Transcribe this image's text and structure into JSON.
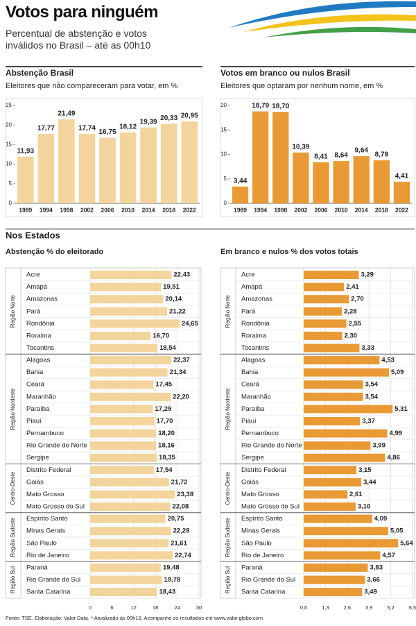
{
  "header": {
    "title": "Votos para ninguém",
    "subtitle": "Percentual de abstenção e votos inválidos no Brasil – até as 00h10"
  },
  "section_title": "Nos Estados",
  "source": "Fonte: TSE. Elaboração: Valor Data. * Atualizado às 00h10. Acompanhe os resultados em www.valor.globo.com",
  "chart_data": [
    {
      "type": "bar",
      "title": "Abstenção Brasil",
      "subtitle": "Eleitores que não compareceram para votar, em %",
      "categories": [
        "1989",
        "1994",
        "1998",
        "2002",
        "2006",
        "2010",
        "2014",
        "2018",
        "2022"
      ],
      "values": [
        11.93,
        17.77,
        21.49,
        17.74,
        16.75,
        18.12,
        19.39,
        20.33,
        20.95
      ],
      "value_labels": [
        "11,93",
        "17,77",
        "21,49",
        "17,74",
        "16,75",
        "18,12",
        "19,39",
        "20,33",
        "20,95"
      ],
      "color": "#f3d49c",
      "ylim": [
        0,
        25
      ],
      "yticks": [
        0,
        5,
        10,
        15,
        20,
        25
      ]
    },
    {
      "type": "bar",
      "title": "Votos em branco ou nulos Brasil",
      "subtitle": "Eleitores que optaram por nenhum nome, em %",
      "categories": [
        "1989",
        "1994",
        "1998",
        "2002",
        "2006",
        "2010",
        "2014",
        "2018",
        "2022"
      ],
      "values": [
        3.44,
        18.79,
        18.7,
        10.39,
        8.41,
        8.64,
        9.64,
        8.79,
        4.41
      ],
      "value_labels": [
        "3,44",
        "18,79",
        "18,70",
        "10,39",
        "8,41",
        "8,64",
        "9,64",
        "8,79",
        "4,41"
      ],
      "color": "#e99a35",
      "ylim": [
        0,
        20
      ],
      "yticks": [
        0,
        5,
        10,
        15,
        20
      ]
    },
    {
      "type": "hbar",
      "title": "Abstenção % do eleitorado",
      "color": "#f3d49c",
      "xlim": [
        0,
        30
      ],
      "xticks": [
        0,
        6,
        12,
        18,
        24,
        30
      ],
      "groups": [
        {
          "name": "Região Norte",
          "categories": [
            "Acre",
            "Amapá",
            "Amazonas",
            "Pará",
            "Rondônia",
            "Roraima",
            "Tocantins"
          ],
          "values": [
            22.43,
            19.51,
            20.14,
            21.22,
            24.65,
            16.7,
            18.54
          ],
          "value_labels": [
            "22,43",
            "19,51",
            "20,14",
            "21,22",
            "24,65",
            "16,70",
            "18,54"
          ]
        },
        {
          "name": "Região Nordeste",
          "categories": [
            "Alagoas",
            "Bahia",
            "Ceará",
            "Maranhão",
            "Paraíba",
            "Piauí",
            "Pernambuco",
            "Rio Grande do Norte",
            "Sergipe"
          ],
          "values": [
            22.37,
            21.34,
            17.45,
            22.2,
            17.29,
            17.7,
            18.2,
            18.16,
            18.35
          ],
          "value_labels": [
            "22,37",
            "21,34",
            "17,45",
            "22,20",
            "17,29",
            "17,70",
            "18,20",
            "18,16",
            "18,35"
          ]
        },
        {
          "name": "Centro-Oeste",
          "categories": [
            "Distrito Federal",
            "Goiás",
            "Mato Grosso",
            "Mato Grosso do Sul"
          ],
          "values": [
            17.54,
            21.72,
            23.38,
            22.08
          ],
          "value_labels": [
            "17,54",
            "21,72",
            "23,38",
            "22,08"
          ]
        },
        {
          "name": "Região Sudeste",
          "categories": [
            "Espírito Santo",
            "Minas Gerais",
            "São Paulo",
            "Rio de Janeiro"
          ],
          "values": [
            20.75,
            22.28,
            21.61,
            22.74
          ],
          "value_labels": [
            "20,75",
            "22,28",
            "21,61",
            "22,74"
          ]
        },
        {
          "name": "Região Sul",
          "categories": [
            "Paraná",
            "Rio Grande do Sul",
            "Santa Catarina"
          ],
          "values": [
            19.48,
            19.78,
            18.43
          ],
          "value_labels": [
            "19,48",
            "19,78",
            "18,43"
          ]
        }
      ]
    },
    {
      "type": "hbar",
      "title": "Em branco e nulos  % dos votos totais",
      "color": "#e99a35",
      "xlim": [
        0,
        6.5
      ],
      "xticks": [
        {
          "value": 0,
          "label": "0,0"
        },
        {
          "value": 1.3,
          "label": "1,3"
        },
        {
          "value": 2.6,
          "label": "2,6"
        },
        {
          "value": 3.9,
          "label": "3,9"
        },
        {
          "value": 5.2,
          "label": "5,2"
        },
        {
          "value": 6.5,
          "label": "6,5"
        }
      ],
      "groups": [
        {
          "name": "Região Norte",
          "categories": [
            "Acre",
            "Amapá",
            "Amazonas",
            "Pará",
            "Rondônia",
            "Roraima",
            "Tocantins"
          ],
          "values": [
            3.29,
            2.41,
            2.7,
            2.28,
            2.55,
            2.3,
            3.33
          ],
          "value_labels": [
            "3,29",
            "2,41",
            "2,70",
            "2,28",
            "2,55",
            "2,30",
            "3,33"
          ]
        },
        {
          "name": "Região Nordeste",
          "categories": [
            "Alagoas",
            "Bahia",
            "Ceará",
            "Maranhão",
            "Paraíba",
            "Piauí",
            "Pernambuco",
            "Rio Grande do Norte",
            "Sergipe"
          ],
          "values": [
            4.53,
            5.09,
            3.54,
            3.54,
            5.31,
            3.37,
            4.99,
            3.99,
            4.86
          ],
          "value_labels": [
            "4,53",
            "5,09",
            "3,54",
            "3,54",
            "5,31",
            "3,37",
            "4,99",
            "3,99",
            "4,86"
          ]
        },
        {
          "name": "Centro-Oeste",
          "categories": [
            "Distrito Federal",
            "Goiás",
            "Mato Grosso",
            "Mato Grosso do Sul"
          ],
          "values": [
            3.15,
            3.44,
            2.61,
            3.1
          ],
          "value_labels": [
            "3,15",
            "3,44",
            "2,61",
            "3,10"
          ]
        },
        {
          "name": "Região Sudeste",
          "categories": [
            "Espírito Santo",
            "Minas Gerais",
            "São Paulo",
            "Rio de Janeiro"
          ],
          "values": [
            4.09,
            5.05,
            5.64,
            4.57
          ],
          "value_labels": [
            "4,09",
            "5,05",
            "5,64",
            "4,57"
          ]
        },
        {
          "name": "Região Sul",
          "categories": [
            "Paraná",
            "Rio Grande do Sul",
            "Santa Catarina"
          ],
          "values": [
            3.83,
            3.66,
            3.49
          ],
          "value_labels": [
            "3,83",
            "3,66",
            "3,49"
          ]
        }
      ]
    }
  ]
}
